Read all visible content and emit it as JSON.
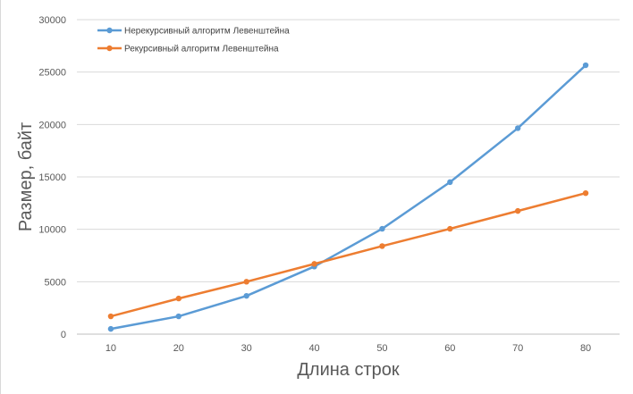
{
  "chart_data": {
    "type": "line",
    "title": "",
    "xlabel": "Длина строк",
    "ylabel": "Размер, байт",
    "categories": [
      "10",
      "20",
      "30",
      "40",
      "50",
      "60",
      "70",
      "80"
    ],
    "ylim": [
      0,
      30000
    ],
    "yticks": [
      "0",
      "5000",
      "10000",
      "15000",
      "20000",
      "25000",
      "30000"
    ],
    "grid": true,
    "legend_position": "top-left",
    "series": [
      {
        "name": "Нерекурсивный алгоритм Левенштейна",
        "color": "#5B9BD5",
        "values": [
          500,
          1700,
          3650,
          6450,
          10050,
          14500,
          19650,
          25650
        ]
      },
      {
        "name": "Рекурсивный алгоритм Левенштейна",
        "color": "#ED7D31",
        "values": [
          1700,
          3400,
          5000,
          6700,
          8400,
          10050,
          11750,
          13450
        ]
      }
    ]
  }
}
